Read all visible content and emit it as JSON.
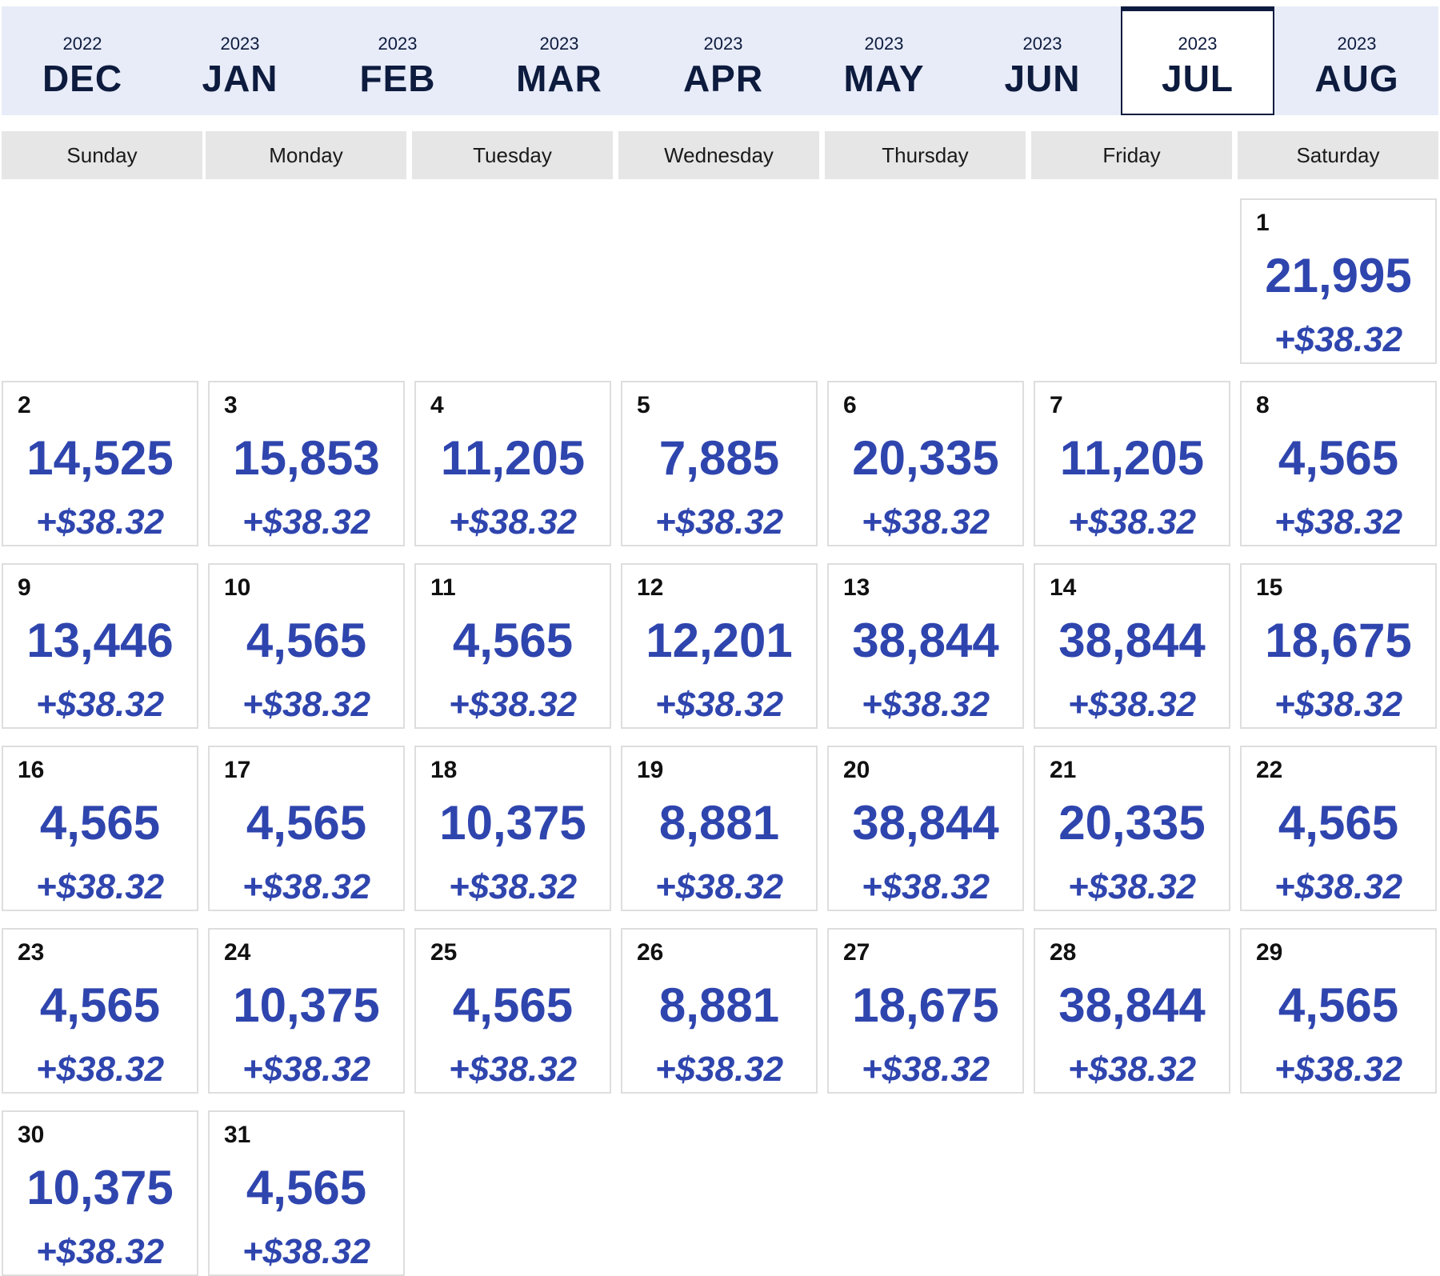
{
  "months": [
    {
      "year": "2022",
      "label": "DEC"
    },
    {
      "year": "2023",
      "label": "JAN"
    },
    {
      "year": "2023",
      "label": "FEB"
    },
    {
      "year": "2023",
      "label": "MAR"
    },
    {
      "year": "2023",
      "label": "APR"
    },
    {
      "year": "2023",
      "label": "MAY"
    },
    {
      "year": "2023",
      "label": "JUN"
    },
    {
      "year": "2023",
      "label": "JUL"
    },
    {
      "year": "2023",
      "label": "AUG"
    }
  ],
  "selected_month": "JUL",
  "weekdays": [
    "Sunday",
    "Monday",
    "Tuesday",
    "Wednesday",
    "Thursday",
    "Friday",
    "Saturday"
  ],
  "days": [
    {
      "day": "1",
      "points": "21,995",
      "fee": "+$38.32"
    },
    {
      "day": "2",
      "points": "14,525",
      "fee": "+$38.32"
    },
    {
      "day": "3",
      "points": "15,853",
      "fee": "+$38.32"
    },
    {
      "day": "4",
      "points": "11,205",
      "fee": "+$38.32"
    },
    {
      "day": "5",
      "points": "7,885",
      "fee": "+$38.32"
    },
    {
      "day": "6",
      "points": "20,335",
      "fee": "+$38.32"
    },
    {
      "day": "7",
      "points": "11,205",
      "fee": "+$38.32"
    },
    {
      "day": "8",
      "points": "4,565",
      "fee": "+$38.32"
    },
    {
      "day": "9",
      "points": "13,446",
      "fee": "+$38.32"
    },
    {
      "day": "10",
      "points": "4,565",
      "fee": "+$38.32"
    },
    {
      "day": "11",
      "points": "4,565",
      "fee": "+$38.32"
    },
    {
      "day": "12",
      "points": "12,201",
      "fee": "+$38.32"
    },
    {
      "day": "13",
      "points": "38,844",
      "fee": "+$38.32"
    },
    {
      "day": "14",
      "points": "38,844",
      "fee": "+$38.32"
    },
    {
      "day": "15",
      "points": "18,675",
      "fee": "+$38.32"
    },
    {
      "day": "16",
      "points": "4,565",
      "fee": "+$38.32"
    },
    {
      "day": "17",
      "points": "4,565",
      "fee": "+$38.32"
    },
    {
      "day": "18",
      "points": "10,375",
      "fee": "+$38.32"
    },
    {
      "day": "19",
      "points": "8,881",
      "fee": "+$38.32"
    },
    {
      "day": "20",
      "points": "38,844",
      "fee": "+$38.32"
    },
    {
      "day": "21",
      "points": "20,335",
      "fee": "+$38.32"
    },
    {
      "day": "22",
      "points": "4,565",
      "fee": "+$38.32"
    },
    {
      "day": "23",
      "points": "4,565",
      "fee": "+$38.32"
    },
    {
      "day": "24",
      "points": "10,375",
      "fee": "+$38.32"
    },
    {
      "day": "25",
      "points": "4,565",
      "fee": "+$38.32"
    },
    {
      "day": "26",
      "points": "8,881",
      "fee": "+$38.32"
    },
    {
      "day": "27",
      "points": "18,675",
      "fee": "+$38.32"
    },
    {
      "day": "28",
      "points": "38,844",
      "fee": "+$38.32"
    },
    {
      "day": "29",
      "points": "4,565",
      "fee": "+$38.32"
    },
    {
      "day": "30",
      "points": "10,375",
      "fee": "+$38.32"
    },
    {
      "day": "31",
      "points": "4,565",
      "fee": "+$38.32"
    }
  ],
  "colors": {
    "accent": "#2f45ae",
    "month_strip_bg": "#e8ecf8",
    "selected_border": "#0d1b3e",
    "weekday_bg": "#e6e6e6",
    "cell_border": "#dedede"
  }
}
